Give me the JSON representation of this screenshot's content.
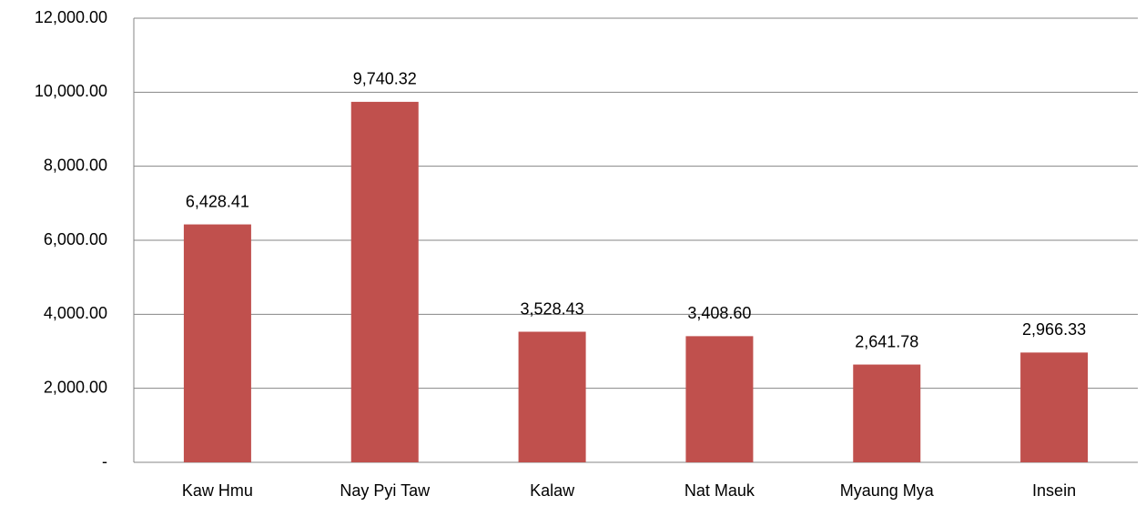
{
  "chart_data": {
    "type": "bar",
    "categories": [
      "Kaw Hmu",
      "Nay Pyi Taw",
      "Kalaw",
      "Nat Mauk",
      "Myaung Mya",
      "Insein"
    ],
    "values": [
      6428.41,
      9740.32,
      3528.43,
      3408.6,
      2641.78,
      2966.33
    ],
    "value_labels": [
      "6,428.41",
      "9,740.32",
      "3,528.43",
      "3,408.60",
      "2,641.78",
      "2,966.33"
    ],
    "color": "#c0504d",
    "ylim": [
      0,
      12000
    ],
    "yticks": [
      {
        "value": 0,
        "label": "-"
      },
      {
        "value": 2000,
        "label": "2,000.00"
      },
      {
        "value": 4000,
        "label": "4,000.00"
      },
      {
        "value": 6000,
        "label": "6,000.00"
      },
      {
        "value": 8000,
        "label": "8,000.00"
      },
      {
        "value": 10000,
        "label": "10,000.00"
      },
      {
        "value": 12000,
        "label": "12,000.00"
      }
    ],
    "grid": true
  }
}
